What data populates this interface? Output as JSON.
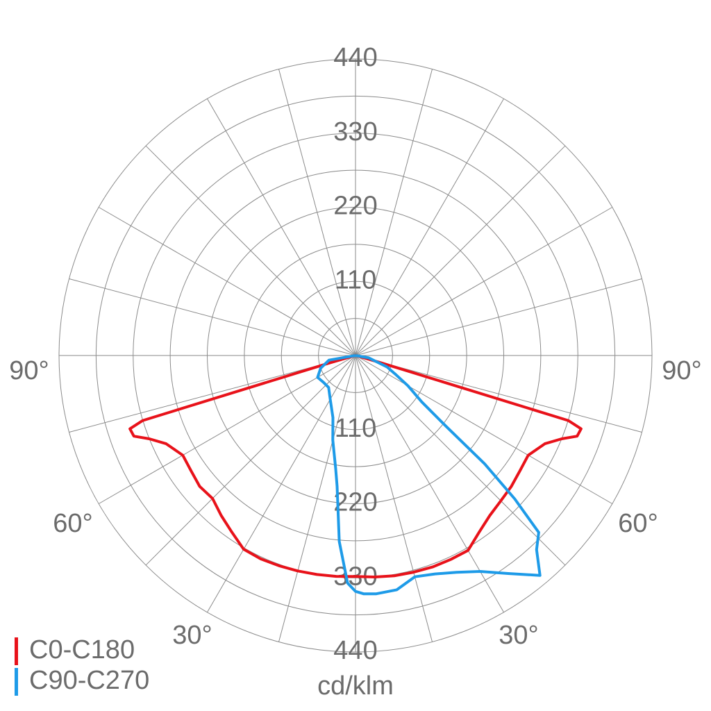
{
  "chart_data": {
    "type": "polar",
    "unit_label": "cd/klm",
    "rlim": [
      0,
      440
    ],
    "rticks": [
      110,
      220,
      330,
      440
    ],
    "rgrid": [
      55,
      110,
      165,
      220,
      275,
      330,
      385,
      440
    ],
    "agrid": [
      0,
      15,
      30,
      45,
      60,
      75,
      90,
      105,
      120,
      135,
      150,
      165,
      180,
      195,
      210,
      225,
      240,
      255,
      270,
      285,
      300,
      315,
      330,
      345
    ],
    "aticks": [
      {
        "value": -90,
        "label": "90°"
      },
      {
        "value": -60,
        "label": "60°"
      },
      {
        "value": -30,
        "label": "30°"
      },
      {
        "value": 30,
        "label": "30°"
      },
      {
        "value": 60,
        "label": "60°"
      },
      {
        "value": 90,
        "label": "90°"
      }
    ],
    "legend": "bottom-left",
    "series": [
      {
        "name": "C0-C180",
        "color": "#e8121a",
        "x": [
          -90,
          -80,
          -76,
          -74,
          -73,
          -72,
          -70,
          -68,
          -65,
          -60,
          -55,
          -50,
          -45,
          -40,
          -35,
          -30,
          -25,
          -20,
          -15,
          -10,
          -5,
          0,
          5,
          10,
          15,
          20,
          25,
          30,
          35,
          40,
          45,
          50,
          55,
          60,
          65,
          68,
          70,
          72,
          73,
          74,
          76,
          80,
          90
        ],
        "values": [
          0,
          2,
          5,
          40,
          330,
          352,
          350,
          330,
          310,
          296,
          298,
          302,
          300,
          310,
          320,
          332,
          333,
          332,
          331,
          330,
          329,
          328,
          330,
          332,
          333,
          334,
          334,
          334,
          320,
          310,
          305,
          302,
          298,
          296,
          310,
          330,
          350,
          352,
          330,
          40,
          5,
          2,
          0
        ]
      },
      {
        "name": "C90-C270",
        "color": "#1e9be8",
        "x": [
          -90,
          -80,
          -70,
          -60,
          -50,
          -40,
          -30,
          -20,
          -15,
          -10,
          -8,
          -5,
          -2,
          0,
          2,
          5,
          10,
          15,
          20,
          25,
          30,
          35,
          40,
          43,
          46,
          48,
          50,
          52,
          55,
          60,
          65,
          70,
          80,
          90
        ],
        "values": [
          0,
          40,
          55,
          65,
          62,
          62,
          75,
          98,
          130,
          170,
          196,
          277,
          338,
          350,
          354,
          355,
          353,
          340,
          345,
          355,
          370,
          395,
          426,
          394,
          378,
          318,
          250,
          170,
          120,
          90,
          65,
          50,
          20,
          0
        ]
      }
    ]
  }
}
